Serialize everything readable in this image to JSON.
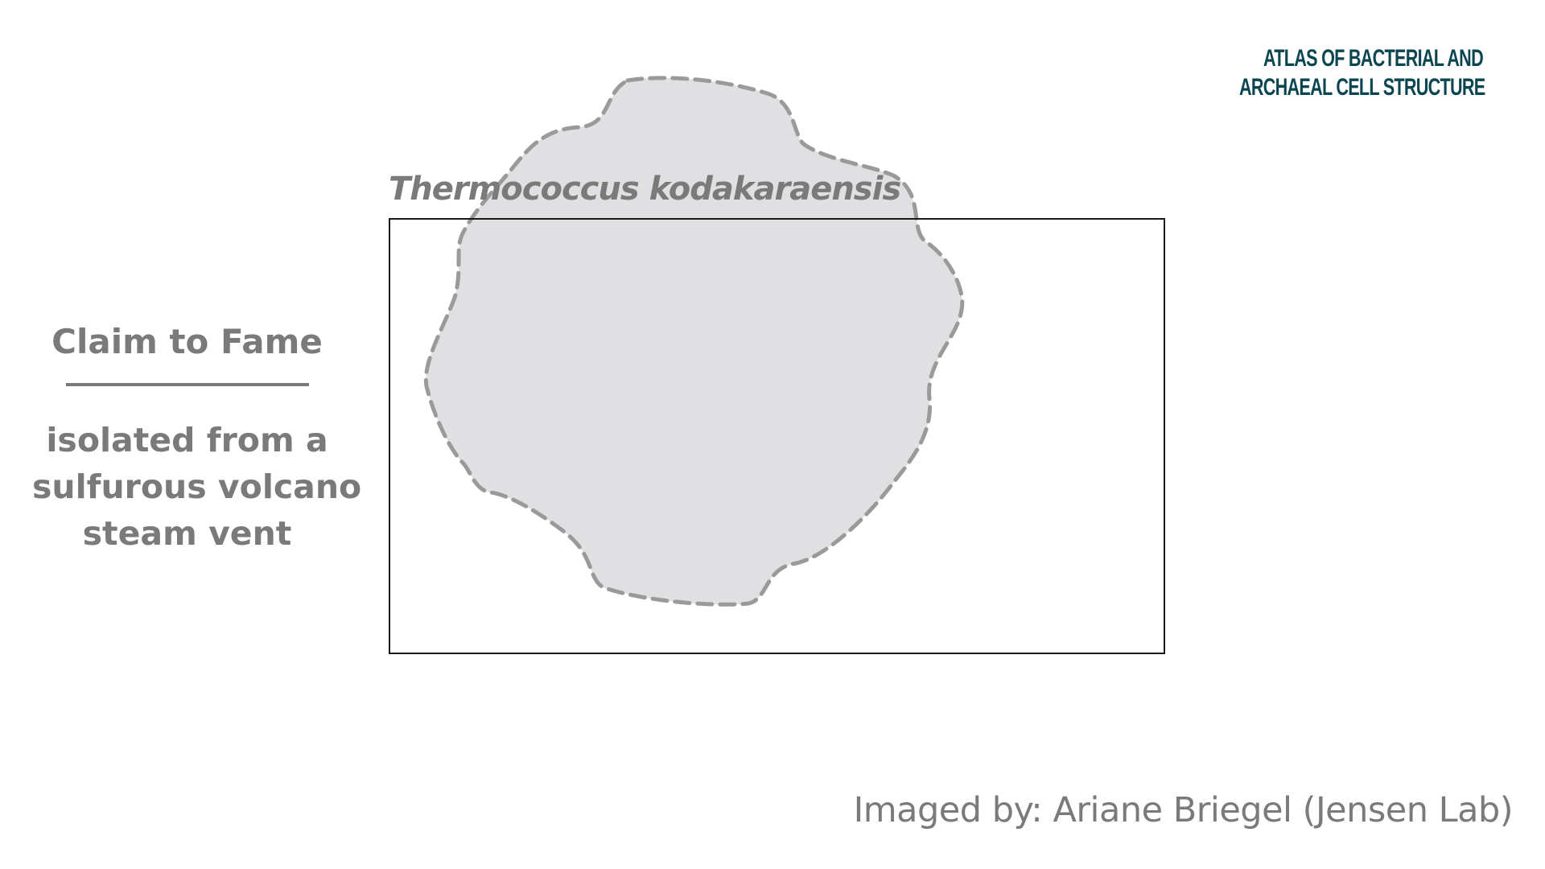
{
  "logo": {
    "line1": "Atlas of Bacterial and",
    "line2": "Archaeal Cell Structure"
  },
  "species": {
    "name": "Thermococcus kodakaraensis"
  },
  "claim_to_fame": {
    "heading": "Claim to Fame",
    "lines": [
      "isolated from a",
      "sulfurous volcano",
      "steam vent"
    ]
  },
  "credit": {
    "text": "Imaged by: Ariane Briegel (Jensen Lab)"
  },
  "colors": {
    "logo": "#0b4650",
    "text_gray": "#7a7a7a",
    "cell_fill": "#e0e0e2",
    "cell_outline": "#9a9a9a",
    "frame": "#1a1a1a"
  }
}
